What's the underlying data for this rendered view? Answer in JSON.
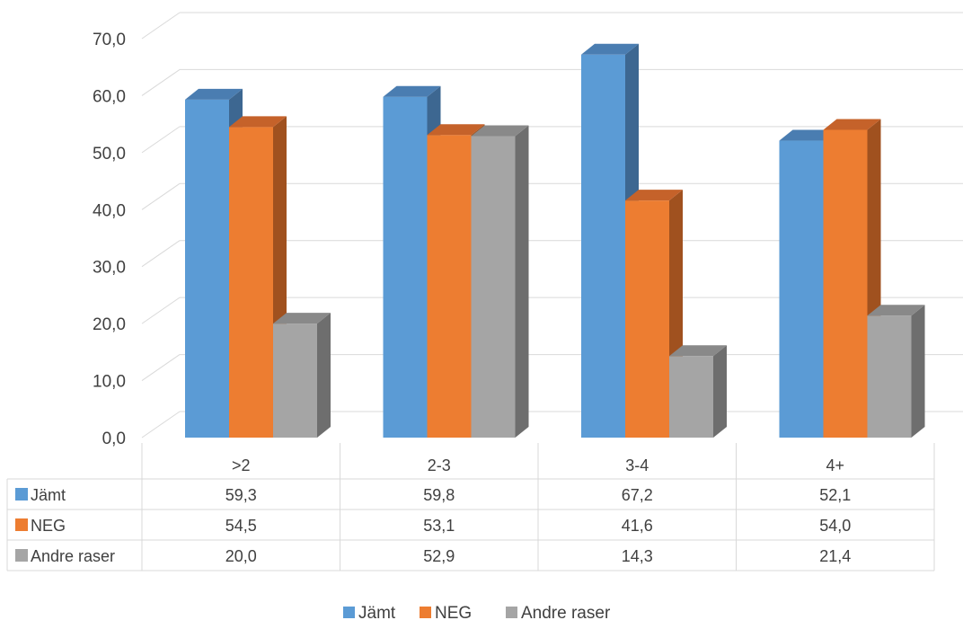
{
  "chart_data": {
    "type": "bar",
    "title": "",
    "xlabel": "",
    "ylabel": "",
    "categories": [
      ">2",
      "2-3",
      "3-4",
      "4+"
    ],
    "series": [
      {
        "name": "Jämt",
        "values": [
          59.3,
          59.8,
          67.2,
          52.1
        ]
      },
      {
        "name": "NEG",
        "values": [
          54.5,
          53.1,
          41.6,
          54.0
        ]
      },
      {
        "name": "Andre raser",
        "values": [
          20.0,
          52.9,
          14.3,
          21.4
        ]
      }
    ],
    "ylim": [
      0,
      70
    ],
    "yticks": [
      "0,0",
      "10,0",
      "20,0",
      "30,0",
      "40,0",
      "50,0",
      "60,0",
      "70,0"
    ],
    "data_table": {
      "rows": [
        {
          "label": "Jämt",
          "cells": [
            "59,3",
            "59,8",
            "67,2",
            "52,1"
          ]
        },
        {
          "label": "NEG",
          "cells": [
            "54,5",
            "53,1",
            "41,6",
            "54,0"
          ]
        },
        {
          "label": "Andre raser",
          "cells": [
            "20,0",
            "52,9",
            "14,3",
            "21,4"
          ]
        }
      ]
    },
    "style": "3d-clustered-column",
    "grid": true,
    "legend": {
      "position": "bottom",
      "items": [
        "Jämt",
        "NEG",
        "Andre raser"
      ]
    },
    "colors": {
      "series": [
        "#5B9BD5",
        "#ED7D31",
        "#A5A5A5"
      ],
      "series_top": [
        "#4A7DB1",
        "#C5622A",
        "#898989"
      ],
      "series_side": [
        "#3D6791",
        "#A0511F",
        "#6E6E6E"
      ],
      "grid": "#D9D9D9",
      "text": "#404040"
    }
  }
}
